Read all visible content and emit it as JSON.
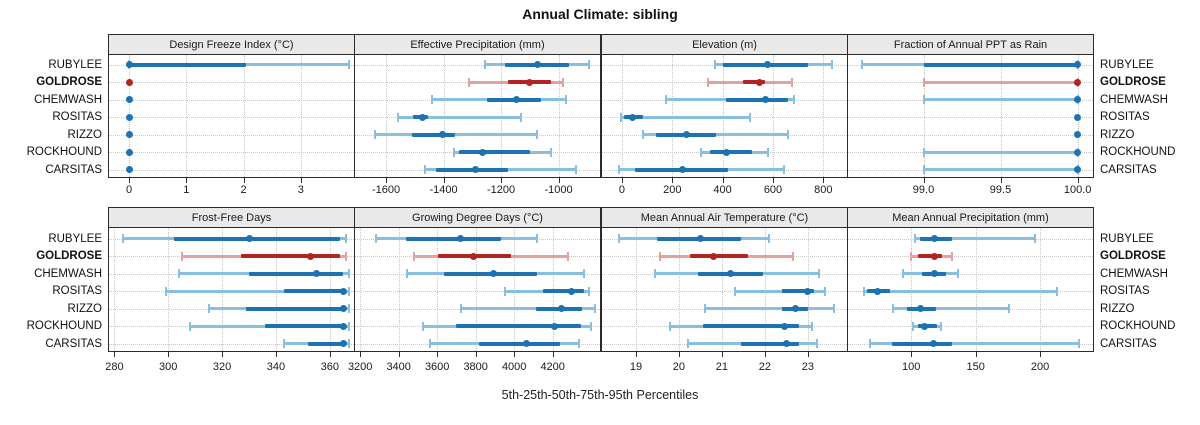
{
  "title": "Annual Climate: sibling",
  "footer": "5th-25th-50th-75th-95th Percentiles",
  "sites": [
    "RUBYLEE",
    "GOLDROSE",
    "CHEMWASH",
    "ROSITAS",
    "RIZZO",
    "ROCKHOUND",
    "CARSITAS"
  ],
  "highlight_site": "GOLDROSE",
  "colors": {
    "normal_dark": "#1d72b0",
    "normal_light": "#8abede",
    "highlight_dark": "#b22424",
    "highlight_light": "#e2a29f",
    "strip_bg": "#e9e9e9",
    "panel_border": "#2b2b2b",
    "gridline": "#c6c6c6"
  },
  "chart_data": [
    {
      "type": "percentile-dotplot",
      "title": "Design Freeze Index (°C)",
      "grid_row": 0,
      "grid_col": 0,
      "xlim": [
        -0.35,
        3.93
      ],
      "ticks": [
        0,
        1,
        2,
        3
      ],
      "tick_labels": [
        "0",
        "1",
        "2",
        "3"
      ],
      "percentiles": [
        5,
        25,
        50,
        75,
        95
      ],
      "values": {
        "RUBYLEE": [
          0,
          0,
          0,
          2.05,
          3.85
        ],
        "GOLDROSE": [
          0,
          0,
          0,
          0,
          0
        ],
        "CHEMWASH": [
          0,
          0,
          0,
          0,
          0
        ],
        "ROSITAS": [
          0,
          0,
          0,
          0,
          0
        ],
        "RIZZO": [
          0,
          0,
          0,
          0,
          0
        ],
        "ROCKHOUND": [
          0,
          0,
          0,
          0,
          0
        ],
        "CARSITAS": [
          0,
          0,
          0,
          0,
          0
        ]
      }
    },
    {
      "type": "percentile-dotplot",
      "title": "Effective Precipitation (mm)",
      "grid_row": 0,
      "grid_col": 1,
      "xlim": [
        -1708,
        -856
      ],
      "ticks": [
        -1600,
        -1400,
        -1200,
        -1000
      ],
      "tick_labels": [
        "-1600",
        "-1400",
        "-1200",
        "-1000"
      ],
      "percentiles": [
        5,
        25,
        50,
        75,
        95
      ],
      "values": {
        "RUBYLEE": [
          -1255,
          -1185,
          -1075,
          -965,
          -895
        ],
        "GOLDROSE": [
          -1310,
          -1175,
          -1100,
          -1025,
          -985
        ],
        "CHEMWASH": [
          -1440,
          -1250,
          -1145,
          -1060,
          -975
        ],
        "ROSITAS": [
          -1560,
          -1505,
          -1475,
          -1455,
          -1130
        ],
        "RIZZO": [
          -1640,
          -1510,
          -1405,
          -1360,
          -1075
        ],
        "ROCKHOUND": [
          -1365,
          -1348,
          -1265,
          -1100,
          -1025
        ],
        "CARSITAS": [
          -1465,
          -1425,
          -1290,
          -1175,
          -940
        ]
      }
    },
    {
      "type": "percentile-dotplot",
      "title": "Elevation (m)",
      "grid_row": 0,
      "grid_col": 2,
      "xlim": [
        -79,
        894
      ],
      "ticks": [
        0,
        200,
        400,
        600,
        800
      ],
      "tick_labels": [
        "0",
        "200",
        "400",
        "600",
        "800"
      ],
      "percentiles": [
        5,
        25,
        50,
        75,
        95
      ],
      "values": {
        "RUBYLEE": [
          370,
          400,
          580,
          740,
          835
        ],
        "GOLDROSE": [
          340,
          480,
          545,
          570,
          675
        ],
        "CHEMWASH": [
          175,
          415,
          570,
          660,
          685
        ],
        "ROSITAS": [
          -5,
          10,
          40,
          85,
          510
        ],
        "RIZZO": [
          85,
          135,
          255,
          375,
          660
        ],
        "ROCKHOUND": [
          315,
          350,
          415,
          515,
          580
        ],
        "CARSITAS": [
          -10,
          50,
          240,
          420,
          645
        ]
      }
    },
    {
      "type": "percentile-dotplot",
      "title": "Fraction of Annual PPT as Rain",
      "grid_row": 0,
      "grid_col": 3,
      "xlim": [
        98.51,
        100.1
      ],
      "ticks": [
        99.0,
        99.5,
        100.0
      ],
      "tick_labels": [
        "99.0",
        "99.5",
        "100.0"
      ],
      "percentiles": [
        5,
        25,
        50,
        75,
        95
      ],
      "values": {
        "RUBYLEE": [
          98.6,
          99.0,
          100,
          100,
          100
        ],
        "GOLDROSE": [
          99.0,
          100,
          100,
          100,
          100
        ],
        "CHEMWASH": [
          99.0,
          100,
          100,
          100,
          100
        ],
        "ROSITAS": [
          100,
          100,
          100,
          100,
          100
        ],
        "RIZZO": [
          100,
          100,
          100,
          100,
          100
        ],
        "ROCKHOUND": [
          99.0,
          100,
          100,
          100,
          100
        ],
        "CARSITAS": [
          99.0,
          100,
          100,
          100,
          100
        ]
      }
    },
    {
      "type": "percentile-dotplot",
      "title": "Frost-Free Days",
      "grid_row": 1,
      "grid_col": 0,
      "xlim": [
        278,
        369
      ],
      "ticks": [
        280,
        300,
        320,
        340,
        360
      ],
      "tick_labels": [
        "280",
        "300",
        "320",
        "340",
        "360"
      ],
      "percentiles": [
        5,
        25,
        50,
        75,
        95
      ],
      "values": {
        "RUBYLEE": [
          283,
          302,
          330,
          364,
          366
        ],
        "GOLDROSE": [
          305,
          327,
          353,
          364,
          366
        ],
        "CHEMWASH": [
          304,
          330,
          355,
          365,
          367
        ],
        "ROSITAS": [
          299,
          343,
          365,
          366,
          367
        ],
        "RIZZO": [
          315,
          329,
          365,
          366,
          367
        ],
        "ROCKHOUND": [
          308,
          336,
          365,
          366,
          367
        ],
        "CARSITAS": [
          343,
          352,
          365,
          366,
          367
        ]
      }
    },
    {
      "type": "percentile-dotplot",
      "title": "Growing Degree Days (°C)",
      "grid_row": 1,
      "grid_col": 1,
      "xlim": [
        3173,
        4446
      ],
      "ticks": [
        3200,
        3400,
        3600,
        3800,
        4000,
        4200
      ],
      "tick_labels": [
        "3200",
        "3400",
        "3600",
        "3800",
        "4000",
        "4200"
      ],
      "percentiles": [
        5,
        25,
        50,
        75,
        95
      ],
      "values": {
        "RUBYLEE": [
          3280,
          3440,
          3720,
          3930,
          4120
        ],
        "GOLDROSE": [
          3480,
          3605,
          3790,
          3985,
          4280
        ],
        "CHEMWASH": [
          3445,
          3635,
          3890,
          4120,
          4365
        ],
        "ROSITAS": [
          3950,
          4150,
          4300,
          4365,
          4390
        ],
        "RIZZO": [
          3725,
          4115,
          4245,
          4355,
          4420
        ],
        "ROCKHOUND": [
          3525,
          3695,
          4210,
          4345,
          4400
        ],
        "CARSITAS": [
          3565,
          3815,
          4065,
          4240,
          4335
        ]
      }
    },
    {
      "type": "percentile-dotplot",
      "title": "Mean Annual Air Temperature (°C)",
      "grid_row": 1,
      "grid_col": 2,
      "xlim": [
        18.21,
        23.91
      ],
      "ticks": [
        19,
        20,
        21,
        22,
        23
      ],
      "tick_labels": [
        "19",
        "20",
        "21",
        "22",
        "23"
      ],
      "percentiles": [
        5,
        25,
        50,
        75,
        95
      ],
      "values": {
        "RUBYLEE": [
          18.6,
          19.5,
          20.5,
          21.45,
          22.1
        ],
        "GOLDROSE": [
          19.55,
          20.25,
          20.8,
          21.6,
          22.65
        ],
        "CHEMWASH": [
          19.45,
          20.45,
          21.2,
          21.95,
          23.25
        ],
        "ROSITAS": [
          21.3,
          22.4,
          23.0,
          23.15,
          23.4
        ],
        "RIZZO": [
          20.6,
          22.4,
          22.7,
          23.0,
          23.6
        ],
        "ROCKHOUND": [
          19.8,
          20.55,
          22.45,
          22.8,
          23.1
        ],
        "CARSITAS": [
          20.2,
          21.45,
          22.5,
          22.8,
          23.2
        ]
      }
    },
    {
      "type": "percentile-dotplot",
      "title": "Mean Annual Precipitation (mm)",
      "grid_row": 1,
      "grid_col": 3,
      "xlim": [
        51,
        241
      ],
      "ticks": [
        100,
        150,
        200
      ],
      "tick_labels": [
        "100",
        "150",
        "200"
      ],
      "percentiles": [
        5,
        25,
        50,
        75,
        95
      ],
      "values": {
        "RUBYLEE": [
          103,
          107,
          118,
          132,
          196
        ],
        "GOLDROSE": [
          100,
          105,
          118,
          124,
          132
        ],
        "CHEMWASH": [
          94,
          108,
          118,
          127,
          136
        ],
        "ROSITAS": [
          63,
          66,
          74,
          84,
          213
        ],
        "RIZZO": [
          86,
          97,
          107,
          119,
          176
        ],
        "ROCKHOUND": [
          101,
          105,
          110,
          120,
          123
        ],
        "CARSITAS": [
          68,
          85,
          117,
          132,
          230
        ]
      }
    }
  ]
}
